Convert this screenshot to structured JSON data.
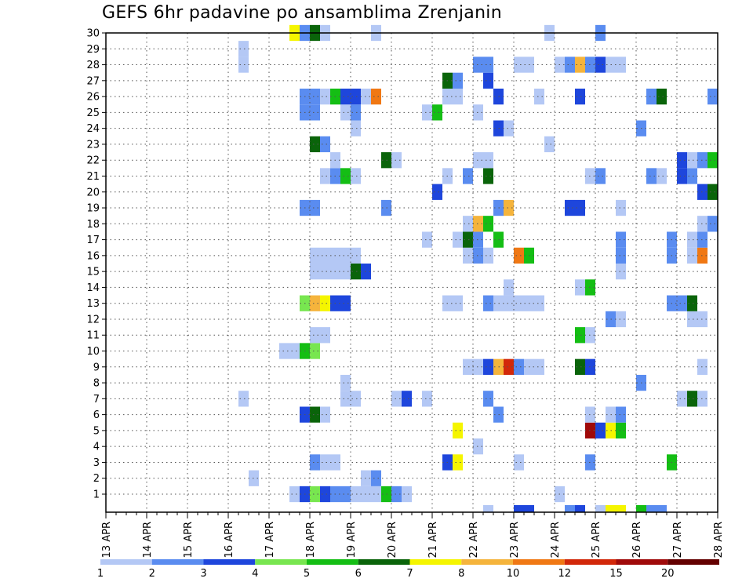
{
  "chart_data": {
    "type": "heatmap",
    "title": "GEFS 6hr padavine po ansamblima Zrenjanin",
    "members": [
      1,
      2,
      3,
      4,
      5,
      6,
      7,
      8,
      9,
      10,
      11,
      12,
      13,
      14,
      15,
      16,
      17,
      18,
      19,
      20,
      21,
      22,
      23,
      24,
      25,
      26,
      27,
      28,
      29,
      30
    ],
    "x_labels": [
      "13 APR",
      "14 APR",
      "15 APR",
      "16 APR",
      "17 APR",
      "18 APR",
      "19 APR",
      "20 APR",
      "21 APR",
      "22 APR",
      "23 APR",
      "24 APR",
      "25 APR",
      "26 APR",
      "27 APR",
      "28 APR"
    ],
    "steps_per_day": 4,
    "n_steps": 61,
    "legend": {
      "labels": [
        "1",
        "2",
        "3",
        "4",
        "5",
        "6",
        "7",
        "8",
        "10",
        "12",
        "15",
        "20"
      ],
      "colors": [
        "#b4c8f5",
        "#5a8cf0",
        "#1e46dc",
        "#78e650",
        "#14be14",
        "#0a640a",
        "#f5f500",
        "#f5b43c",
        "#f07814",
        "#d2280a",
        "#a00a0a",
        "#640000"
      ]
    },
    "cells": [
      [
        1,
        18,
        1
      ],
      [
        1,
        19,
        3
      ],
      [
        1,
        20,
        4
      ],
      [
        1,
        21,
        3
      ],
      [
        1,
        22,
        2
      ],
      [
        1,
        23,
        2
      ],
      [
        1,
        24,
        1
      ],
      [
        1,
        25,
        1
      ],
      [
        1,
        26,
        1
      ],
      [
        1,
        27,
        5
      ],
      [
        1,
        28,
        2
      ],
      [
        1,
        29,
        1
      ],
      [
        1,
        44,
        1
      ],
      [
        2,
        14,
        1
      ],
      [
        2,
        25,
        1
      ],
      [
        2,
        26,
        2
      ],
      [
        3,
        20,
        2
      ],
      [
        3,
        21,
        1
      ],
      [
        3,
        22,
        1
      ],
      [
        3,
        33,
        3
      ],
      [
        3,
        34,
        7
      ],
      [
        3,
        40,
        1
      ],
      [
        3,
        47,
        2
      ],
      [
        3,
        55,
        5
      ],
      [
        4,
        36,
        1
      ],
      [
        5,
        34,
        7
      ],
      [
        5,
        47,
        11
      ],
      [
        5,
        48,
        3
      ],
      [
        5,
        49,
        7
      ],
      [
        5,
        50,
        5
      ],
      [
        6,
        19,
        3
      ],
      [
        6,
        20,
        6
      ],
      [
        6,
        21,
        1
      ],
      [
        6,
        38,
        2
      ],
      [
        6,
        47,
        1
      ],
      [
        6,
        49,
        1
      ],
      [
        6,
        50,
        2
      ],
      [
        7,
        13,
        1
      ],
      [
        7,
        23,
        1
      ],
      [
        7,
        24,
        1
      ],
      [
        7,
        28,
        1
      ],
      [
        7,
        29,
        3
      ],
      [
        7,
        31,
        1
      ],
      [
        7,
        37,
        2
      ],
      [
        7,
        56,
        1
      ],
      [
        7,
        57,
        6
      ],
      [
        7,
        58,
        1
      ],
      [
        8,
        23,
        1
      ],
      [
        8,
        52,
        2
      ],
      [
        9,
        35,
        1
      ],
      [
        9,
        36,
        1
      ],
      [
        9,
        37,
        3
      ],
      [
        9,
        38,
        8
      ],
      [
        9,
        39,
        10
      ],
      [
        9,
        40,
        2
      ],
      [
        9,
        41,
        1
      ],
      [
        9,
        42,
        1
      ],
      [
        9,
        46,
        6
      ],
      [
        9,
        47,
        3
      ],
      [
        9,
        58,
        1
      ],
      [
        10,
        17,
        1
      ],
      [
        10,
        18,
        1
      ],
      [
        10,
        19,
        5
      ],
      [
        10,
        20,
        4
      ],
      [
        11,
        20,
        1
      ],
      [
        11,
        21,
        1
      ],
      [
        11,
        46,
        5
      ],
      [
        11,
        47,
        1
      ],
      [
        12,
        49,
        2
      ],
      [
        12,
        50,
        1
      ],
      [
        12,
        57,
        1
      ],
      [
        12,
        58,
        1
      ],
      [
        13,
        19,
        4
      ],
      [
        13,
        20,
        8
      ],
      [
        13,
        21,
        7
      ],
      [
        13,
        22,
        3
      ],
      [
        13,
        23,
        3
      ],
      [
        13,
        33,
        1
      ],
      [
        13,
        34,
        1
      ],
      [
        13,
        37,
        2
      ],
      [
        13,
        38,
        1
      ],
      [
        13,
        39,
        1
      ],
      [
        13,
        40,
        1
      ],
      [
        13,
        41,
        1
      ],
      [
        13,
        42,
        1
      ],
      [
        13,
        55,
        2
      ],
      [
        13,
        56,
        2
      ],
      [
        13,
        57,
        6
      ],
      [
        14,
        39,
        1
      ],
      [
        14,
        46,
        1
      ],
      [
        14,
        47,
        5
      ],
      [
        15,
        20,
        1
      ],
      [
        15,
        21,
        1
      ],
      [
        15,
        22,
        1
      ],
      [
        15,
        23,
        1
      ],
      [
        15,
        24,
        6
      ],
      [
        15,
        25,
        3
      ],
      [
        15,
        50,
        1
      ],
      [
        16,
        20,
        1
      ],
      [
        16,
        21,
        1
      ],
      [
        16,
        22,
        1
      ],
      [
        16,
        23,
        1
      ],
      [
        16,
        24,
        1
      ],
      [
        16,
        35,
        1
      ],
      [
        16,
        36,
        2
      ],
      [
        16,
        37,
        1
      ],
      [
        16,
        40,
        9
      ],
      [
        16,
        41,
        5
      ],
      [
        16,
        50,
        2
      ],
      [
        16,
        55,
        2
      ],
      [
        16,
        57,
        1
      ],
      [
        16,
        58,
        9
      ],
      [
        17,
        31,
        1
      ],
      [
        17,
        34,
        1
      ],
      [
        17,
        35,
        6
      ],
      [
        17,
        36,
        2
      ],
      [
        17,
        38,
        5
      ],
      [
        17,
        50,
        2
      ],
      [
        17,
        55,
        2
      ],
      [
        17,
        57,
        1
      ],
      [
        17,
        58,
        2
      ],
      [
        18,
        35,
        1
      ],
      [
        18,
        36,
        8
      ],
      [
        18,
        37,
        5
      ],
      [
        18,
        58,
        1
      ],
      [
        18,
        59,
        2
      ],
      [
        19,
        19,
        2
      ],
      [
        19,
        20,
        2
      ],
      [
        19,
        27,
        2
      ],
      [
        19,
        38,
        2
      ],
      [
        19,
        39,
        8
      ],
      [
        19,
        45,
        3
      ],
      [
        19,
        46,
        3
      ],
      [
        19,
        50,
        1
      ],
      [
        20,
        32,
        3
      ],
      [
        20,
        58,
        3
      ],
      [
        20,
        59,
        6
      ],
      [
        21,
        21,
        1
      ],
      [
        21,
        22,
        2
      ],
      [
        21,
        23,
        5
      ],
      [
        21,
        24,
        1
      ],
      [
        21,
        33,
        1
      ],
      [
        21,
        35,
        2
      ],
      [
        21,
        37,
        6
      ],
      [
        21,
        47,
        1
      ],
      [
        21,
        48,
        2
      ],
      [
        21,
        53,
        2
      ],
      [
        21,
        54,
        1
      ],
      [
        21,
        56,
        3
      ],
      [
        21,
        57,
        2
      ],
      [
        22,
        22,
        1
      ],
      [
        22,
        27,
        6
      ],
      [
        22,
        28,
        1
      ],
      [
        22,
        36,
        1
      ],
      [
        22,
        37,
        1
      ],
      [
        22,
        56,
        3
      ],
      [
        22,
        57,
        1
      ],
      [
        22,
        58,
        2
      ],
      [
        22,
        59,
        5
      ],
      [
        23,
        20,
        6
      ],
      [
        23,
        21,
        2
      ],
      [
        23,
        43,
        1
      ],
      [
        24,
        24,
        1
      ],
      [
        24,
        38,
        3
      ],
      [
        24,
        39,
        1
      ],
      [
        24,
        52,
        2
      ],
      [
        25,
        19,
        2
      ],
      [
        25,
        20,
        2
      ],
      [
        25,
        23,
        1
      ],
      [
        25,
        24,
        2
      ],
      [
        25,
        31,
        1
      ],
      [
        25,
        32,
        5
      ],
      [
        25,
        36,
        1
      ],
      [
        26,
        19,
        2
      ],
      [
        26,
        20,
        2
      ],
      [
        26,
        21,
        1
      ],
      [
        26,
        22,
        5
      ],
      [
        26,
        23,
        3
      ],
      [
        26,
        24,
        3
      ],
      [
        26,
        25,
        1
      ],
      [
        26,
        26,
        9
      ],
      [
        26,
        33,
        1
      ],
      [
        26,
        34,
        1
      ],
      [
        26,
        38,
        3
      ],
      [
        26,
        42,
        1
      ],
      [
        26,
        46,
        3
      ],
      [
        26,
        53,
        2
      ],
      [
        26,
        54,
        6
      ],
      [
        26,
        59,
        2
      ],
      [
        27,
        33,
        6
      ],
      [
        27,
        34,
        2
      ],
      [
        27,
        37,
        3
      ],
      [
        28,
        13,
        1
      ],
      [
        28,
        36,
        2
      ],
      [
        28,
        37,
        2
      ],
      [
        28,
        40,
        1
      ],
      [
        28,
        41,
        1
      ],
      [
        28,
        44,
        1
      ],
      [
        28,
        45,
        2
      ],
      [
        28,
        46,
        8
      ],
      [
        28,
        47,
        2
      ],
      [
        28,
        48,
        3
      ],
      [
        28,
        49,
        1
      ],
      [
        28,
        50,
        1
      ],
      [
        29,
        13,
        1
      ],
      [
        30,
        18,
        7
      ],
      [
        30,
        19,
        2
      ],
      [
        30,
        20,
        6
      ],
      [
        30,
        21,
        1
      ],
      [
        30,
        26,
        1
      ],
      [
        30,
        43,
        1
      ],
      [
        30,
        48,
        2
      ]
    ],
    "strip": [
      [
        37,
        1
      ],
      [
        40,
        3
      ],
      [
        41,
        3
      ],
      [
        45,
        2
      ],
      [
        46,
        3
      ],
      [
        48,
        1
      ],
      [
        49,
        7
      ],
      [
        50,
        7
      ],
      [
        52,
        5
      ],
      [
        53,
        2
      ],
      [
        54,
        2
      ]
    ]
  }
}
